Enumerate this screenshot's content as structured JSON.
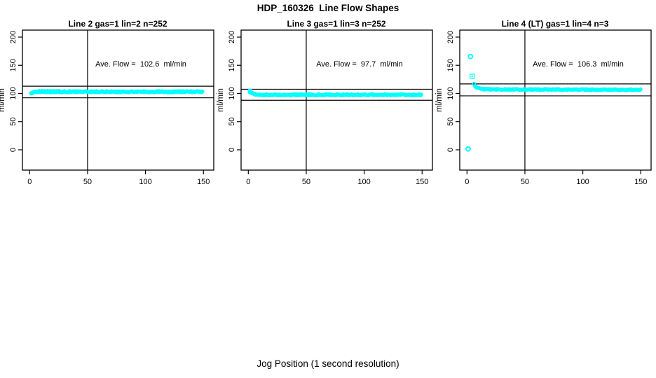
{
  "page_title": "HDP_160326  Line Flow Shapes",
  "outer_xlabel": "Jog Position (1 second resolution)",
  "colors": {
    "points": "#00ffff",
    "axis": "#000000",
    "text": "#000000",
    "background": "#ffffff"
  },
  "chart_data": [
    {
      "type": "scatter",
      "title": "Line 2 gas=1 lin=2 n=252",
      "annotation": "Ave. Flow =  102.6  ml/min",
      "ave_flow_ml_min": 102.6,
      "n_runs": 252,
      "ylabel": "ml/min",
      "x_ticks": [
        0,
        50,
        100,
        150
      ],
      "y_ticks": [
        0,
        50,
        100,
        150,
        200
      ],
      "xlim": [
        -6,
        159
      ],
      "ylim": [
        -36,
        212
      ],
      "grid": false,
      "vline_x": 50,
      "hlines_y": [
        112.9,
        92.3
      ],
      "series": [
        {
          "name": "flow-band",
          "marker": "circle",
          "x_range": [
            1,
            150
          ],
          "centerline": [
            [
              1,
              99.5
            ],
            [
              2,
              101
            ],
            [
              3,
              102
            ],
            [
              5,
              102.8
            ],
            [
              8,
              103
            ],
            [
              150,
              103
            ]
          ],
          "jitter": 1.1,
          "density_step": 0.7
        }
      ],
      "extra_points": [
        {
          "x": 8,
          "y": 105.4,
          "marker": "dot"
        },
        {
          "x": 10.5,
          "y": 105.6,
          "marker": "dot"
        },
        {
          "x": 13,
          "y": 105.3,
          "marker": "dot"
        },
        {
          "x": 15.5,
          "y": 105.6,
          "marker": "dot"
        },
        {
          "x": 18,
          "y": 105.4,
          "marker": "dot"
        },
        {
          "x": 20.5,
          "y": 105.6,
          "marker": "dot"
        },
        {
          "x": 23,
          "y": 105.3,
          "marker": "dot"
        },
        {
          "x": 25.5,
          "y": 105.5,
          "marker": "dot"
        }
      ]
    },
    {
      "type": "scatter",
      "title": "Line 3 gas=1 lin=3 n=252",
      "annotation": "Ave. Flow =  97.7  ml/min",
      "ave_flow_ml_min": 97.7,
      "n_runs": 252,
      "ylabel": "ml/min",
      "x_ticks": [
        0,
        50,
        100,
        150
      ],
      "y_ticks": [
        0,
        50,
        100,
        150,
        200
      ],
      "xlim": [
        -6,
        159
      ],
      "ylim": [
        -36,
        212
      ],
      "grid": false,
      "vline_x": 50,
      "hlines_y": [
        107.5,
        87.9
      ],
      "series": [
        {
          "name": "flow-band",
          "marker": "circle",
          "x_range": [
            1,
            150
          ],
          "centerline": [
            [
              1,
              103
            ],
            [
              2,
              102
            ],
            [
              3,
              100.5
            ],
            [
              5,
              99
            ],
            [
              8,
              98
            ],
            [
              12,
              97.6
            ],
            [
              150,
              97.5
            ]
          ],
          "jitter": 1.1,
          "density_step": 0.7
        }
      ],
      "extra_points": [
        {
          "x": 1.5,
          "y": 104.8,
          "marker": "square-plus-small"
        }
      ]
    },
    {
      "type": "scatter",
      "title": "Line 4 (LT) gas=1 lin=4 n=3",
      "annotation": "Ave. Flow =  106.3  ml/min",
      "ave_flow_ml_min": 106.3,
      "n_runs": 3,
      "ylabel": "ml/min",
      "x_ticks": [
        0,
        50,
        100,
        150
      ],
      "y_ticks": [
        0,
        50,
        100,
        150,
        200
      ],
      "xlim": [
        -6,
        159
      ],
      "ylim": [
        -36,
        212
      ],
      "grid": false,
      "vline_x": 50,
      "hlines_y": [
        116.9,
        95.7
      ],
      "series": [
        {
          "name": "flow-band",
          "marker": "circle",
          "x_range": [
            6,
            150
          ],
          "centerline": [
            [
              6,
              117
            ],
            [
              7,
              112.5
            ],
            [
              9,
              109.5
            ],
            [
              12,
              108
            ],
            [
              20,
              107.3
            ],
            [
              80,
              106.8
            ],
            [
              150,
              106.5
            ]
          ],
          "jitter": 0.9,
          "density_step": 0.8
        }
      ],
      "extra_points": [
        {
          "x": 3,
          "y": 165.5,
          "marker": "circle-large"
        },
        {
          "x": 4.5,
          "y": 130.5,
          "marker": "square-plus"
        },
        {
          "x": 6,
          "y": 117,
          "marker": "circle"
        },
        {
          "x": 1,
          "y": 1.5,
          "marker": "circle-large"
        }
      ]
    }
  ]
}
